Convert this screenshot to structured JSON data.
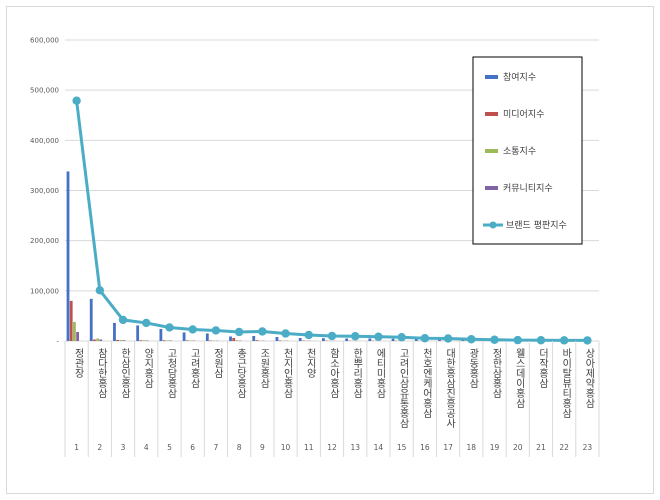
{
  "chart_data": {
    "type": "bar",
    "title": "",
    "xlabel": "",
    "ylabel": "",
    "ylim": [
      0,
      600000
    ],
    "yticks": [
      "-",
      "100,000",
      "200,000",
      "300,000",
      "400,000",
      "500,000",
      "600,000"
    ],
    "grid": true,
    "legend_position": "right",
    "categories": [
      "정관장",
      "참다한홍삼",
      "한삼인홍삼",
      "양지홍삼",
      "고청담홍삼",
      "고려홍삼",
      "정원삼",
      "총근당홍삼",
      "조원홍삼",
      "천지인홍삼",
      "천지양",
      "함소아홍삼",
      "한뿌리홍삼",
      "에티미홍삼",
      "고려인삼유통홍삼",
      "천호엔케어홍삼",
      "대한홍삼진흥공사",
      "광동홍삼",
      "정한삼홍삼",
      "웰스데이홍삼",
      "더작홍삼",
      "바이탈뷰티홍삼",
      "상아제약홍삼"
    ],
    "ranks": [
      "1",
      "2",
      "3",
      "4",
      "5",
      "6",
      "7",
      "8",
      "9",
      "10",
      "11",
      "12",
      "13",
      "14",
      "15",
      "16",
      "17",
      "18",
      "19",
      "20",
      "21",
      "22",
      "23"
    ],
    "series": [
      {
        "name": "참여지수",
        "kind": "bar",
        "color": "#4472c4",
        "values": [
          338000,
          84000,
          36000,
          31000,
          24000,
          17000,
          15000,
          9000,
          10000,
          8000,
          6000,
          5500,
          5000,
          5000,
          4500,
          4000,
          3500,
          2500,
          2000,
          1500,
          1200,
          1000,
          900
        ]
      },
      {
        "name": "미디어지수",
        "kind": "bar",
        "color": "#c0504d",
        "values": [
          80000,
          3000,
          2000,
          1500,
          1500,
          1200,
          1000,
          6000,
          1500,
          1000,
          800,
          700,
          600,
          500,
          500,
          400,
          400,
          300,
          300,
          200,
          200,
          200,
          150
        ]
      },
      {
        "name": "소통지수",
        "kind": "bar",
        "color": "#9bbb59",
        "values": [
          38000,
          5000,
          2000,
          1500,
          1200,
          1000,
          800,
          1500,
          800,
          700,
          600,
          500,
          500,
          400,
          400,
          300,
          300,
          300,
          200,
          200,
          200,
          150,
          150
        ]
      },
      {
        "name": "커뮤니티지수",
        "kind": "bar",
        "color": "#8064a2",
        "values": [
          18000,
          3000,
          1500,
          1000,
          1000,
          800,
          600,
          800,
          600,
          500,
          400,
          400,
          300,
          300,
          300,
          200,
          200,
          200,
          150,
          150,
          100,
          100,
          100
        ]
      },
      {
        "name": "브랜드 평판지수",
        "kind": "line",
        "color": "#4bacc6",
        "values": [
          479000,
          101000,
          42000,
          36000,
          27000,
          23000,
          21000,
          18000,
          19000,
          15000,
          12000,
          10000,
          9500,
          8500,
          7500,
          5500,
          5000,
          3500,
          2500,
          1800,
          1500,
          1300,
          1200
        ]
      }
    ]
  }
}
